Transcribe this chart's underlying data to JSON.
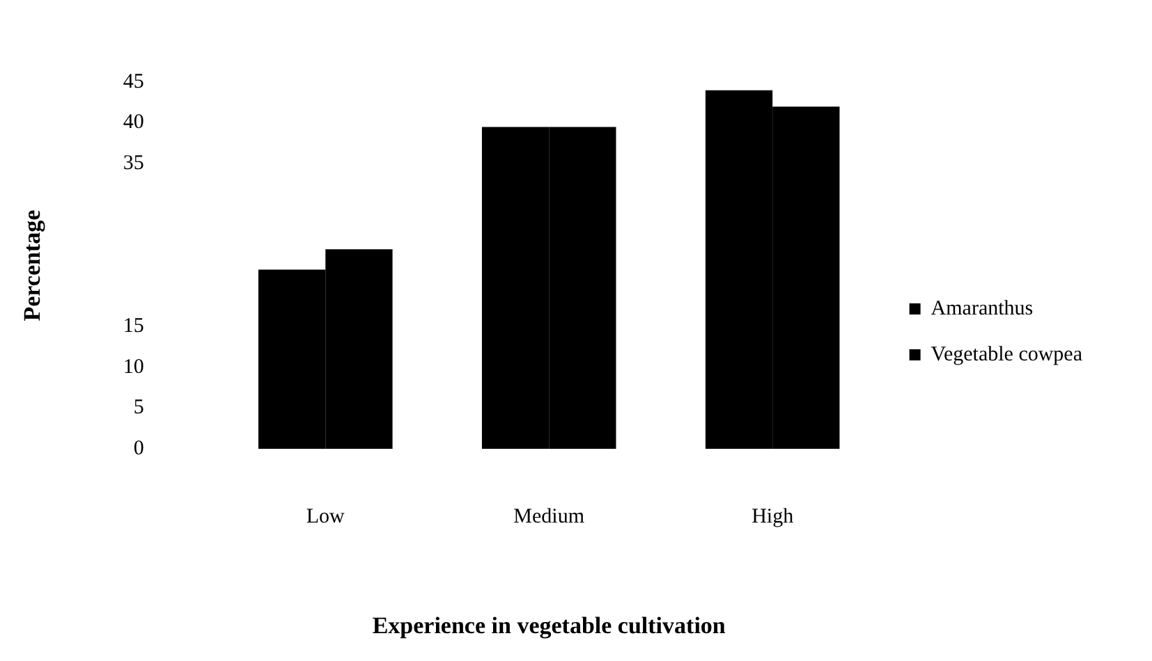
{
  "chart_data": {
    "type": "bar",
    "xlabel": "Experience in vegetable cultivation",
    "ylabel": "Percentage",
    "categories": [
      "Low",
      "Medium",
      "High"
    ],
    "series": [
      {
        "name": "Amaranthus",
        "color": "#000000",
        "values": [
          22,
          39.5,
          44
        ]
      },
      {
        "name": "Vegetable cowpea",
        "color": "#000000",
        "values": [
          24.5,
          39.5,
          42
        ]
      }
    ],
    "ylim": [
      0,
      45
    ],
    "yticks": [
      0,
      5,
      10,
      15,
      35,
      40,
      45
    ],
    "grid": false,
    "legend": "right"
  }
}
